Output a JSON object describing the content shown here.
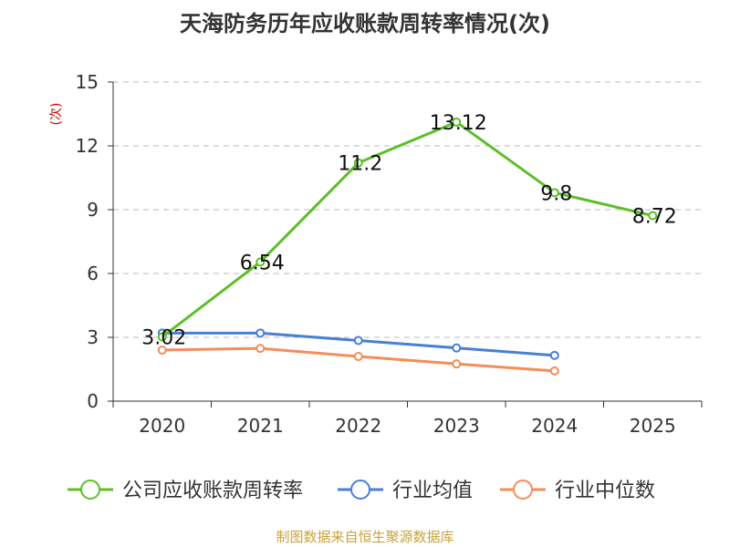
{
  "colors": {
    "receivable": "#5cbf28",
    "industry_avg": "#4a7fd6",
    "industry_median": "#f58c5a",
    "axis": "#333333",
    "grid": "#bbbbbb",
    "ylabel": "#cc0000",
    "source": "#c9a23a"
  },
  "source_note": "制图数据来自恒生聚源数据库",
  "chart_data": {
    "type": "line",
    "title": "天海防务历年应收账款周转率情况(次)",
    "xlabel": "",
    "ylabel": "(次)",
    "categories": [
      "2020",
      "2021",
      "2022",
      "2023",
      "2024",
      "2025"
    ],
    "ylim": [
      0,
      15
    ],
    "yticks": [
      0,
      3,
      6,
      9,
      12,
      15
    ],
    "grid": true,
    "legend_position": "bottom",
    "series": [
      {
        "name": "公司应收账款周转率",
        "values": [
          3.02,
          6.54,
          11.2,
          13.12,
          9.8,
          8.72
        ],
        "value_labels": [
          "3.02",
          "6.54",
          "11.2",
          "13.12",
          "9.8",
          "8.72"
        ],
        "show_labels": true,
        "color_key": "receivable"
      },
      {
        "name": "行业均值",
        "values": [
          3.2,
          3.2,
          2.85,
          2.5,
          2.15,
          null
        ],
        "show_labels": false,
        "color_key": "industry_avg"
      },
      {
        "name": "行业中位数",
        "values": [
          2.4,
          2.48,
          2.1,
          1.75,
          1.42,
          null
        ],
        "show_labels": false,
        "color_key": "industry_median"
      }
    ]
  }
}
